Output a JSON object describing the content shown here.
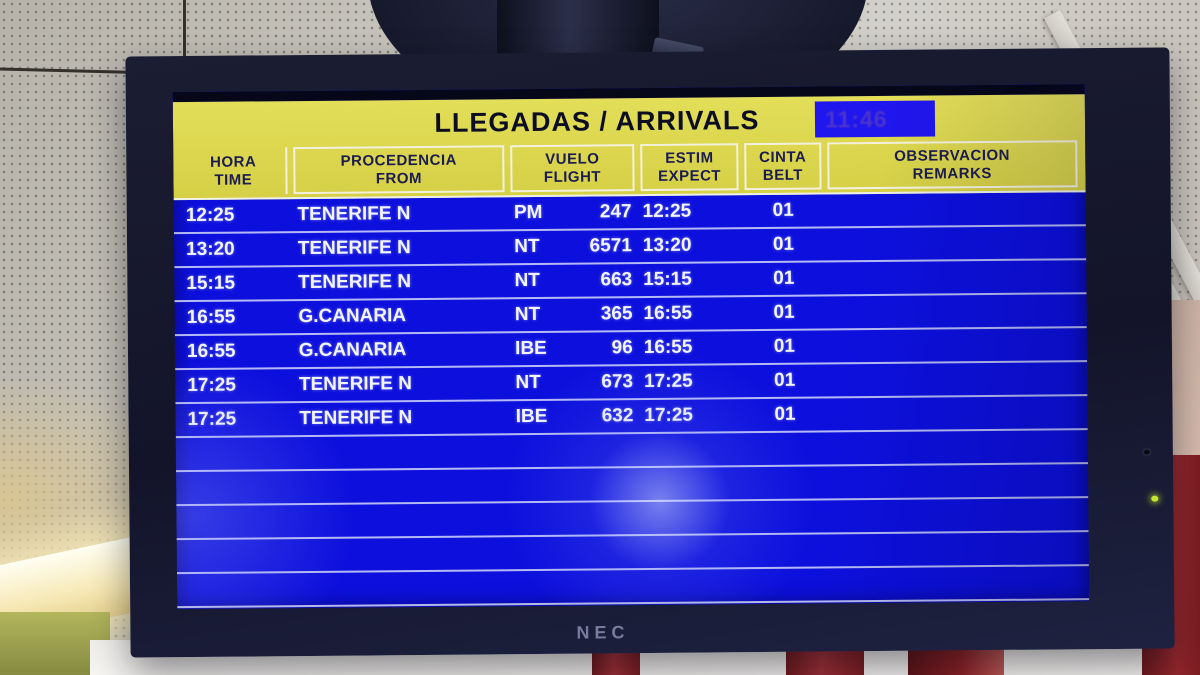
{
  "monitor": {
    "brand": "NEC"
  },
  "board": {
    "title": "LLEGADAS / ARRIVALS",
    "clock": "11:46",
    "columns": [
      {
        "id": "hora",
        "es": "HORA",
        "en": "TIME"
      },
      {
        "id": "procedencia",
        "es": "PROCEDENCIA",
        "en": "FROM"
      },
      {
        "id": "vuelo",
        "es": "VUELO",
        "en": "FLIGHT"
      },
      {
        "id": "estim",
        "es": "ESTIM",
        "en": "EXPECT"
      },
      {
        "id": "cinta",
        "es": "CINTA",
        "en": "BELT"
      },
      {
        "id": "observacion",
        "es": "OBSERVACION",
        "en": "REMARKS"
      }
    ],
    "flights": [
      {
        "hora": "12:25",
        "from": "TENERIFE N",
        "airline": "PM",
        "flight": "247",
        "estim": "12:25",
        "belt": "01",
        "remarks": ""
      },
      {
        "hora": "13:20",
        "from": "TENERIFE N",
        "airline": "NT",
        "flight": "6571",
        "estim": "13:20",
        "belt": "01",
        "remarks": ""
      },
      {
        "hora": "15:15",
        "from": "TENERIFE N",
        "airline": "NT",
        "flight": "663",
        "estim": "15:15",
        "belt": "01",
        "remarks": ""
      },
      {
        "hora": "16:55",
        "from": "G.CANARIA",
        "airline": "NT",
        "flight": "365",
        "estim": "16:55",
        "belt": "01",
        "remarks": ""
      },
      {
        "hora": "16:55",
        "from": "G.CANARIA",
        "airline": "IBE",
        "flight": "96",
        "estim": "16:55",
        "belt": "01",
        "remarks": ""
      },
      {
        "hora": "17:25",
        "from": "TENERIFE N",
        "airline": "NT",
        "flight": "673",
        "estim": "17:25",
        "belt": "01",
        "remarks": ""
      },
      {
        "hora": "17:25",
        "from": "TENERIFE N",
        "airline": "IBE",
        "flight": "632",
        "estim": "17:25",
        "belt": "01",
        "remarks": ""
      }
    ],
    "empty_row_count": 5,
    "colors": {
      "screen_blue": "#0d10dc",
      "band_yellow": "#d9d44e",
      "header_text": "#1c1c50",
      "row_text": "#f2f4ff",
      "clock_bg": "#2016ee",
      "clock_text": "#4a35cc",
      "bezel_navy": "#161830",
      "power_led_green": "#c6e52f",
      "pillar_red": "#8e2126"
    }
  }
}
